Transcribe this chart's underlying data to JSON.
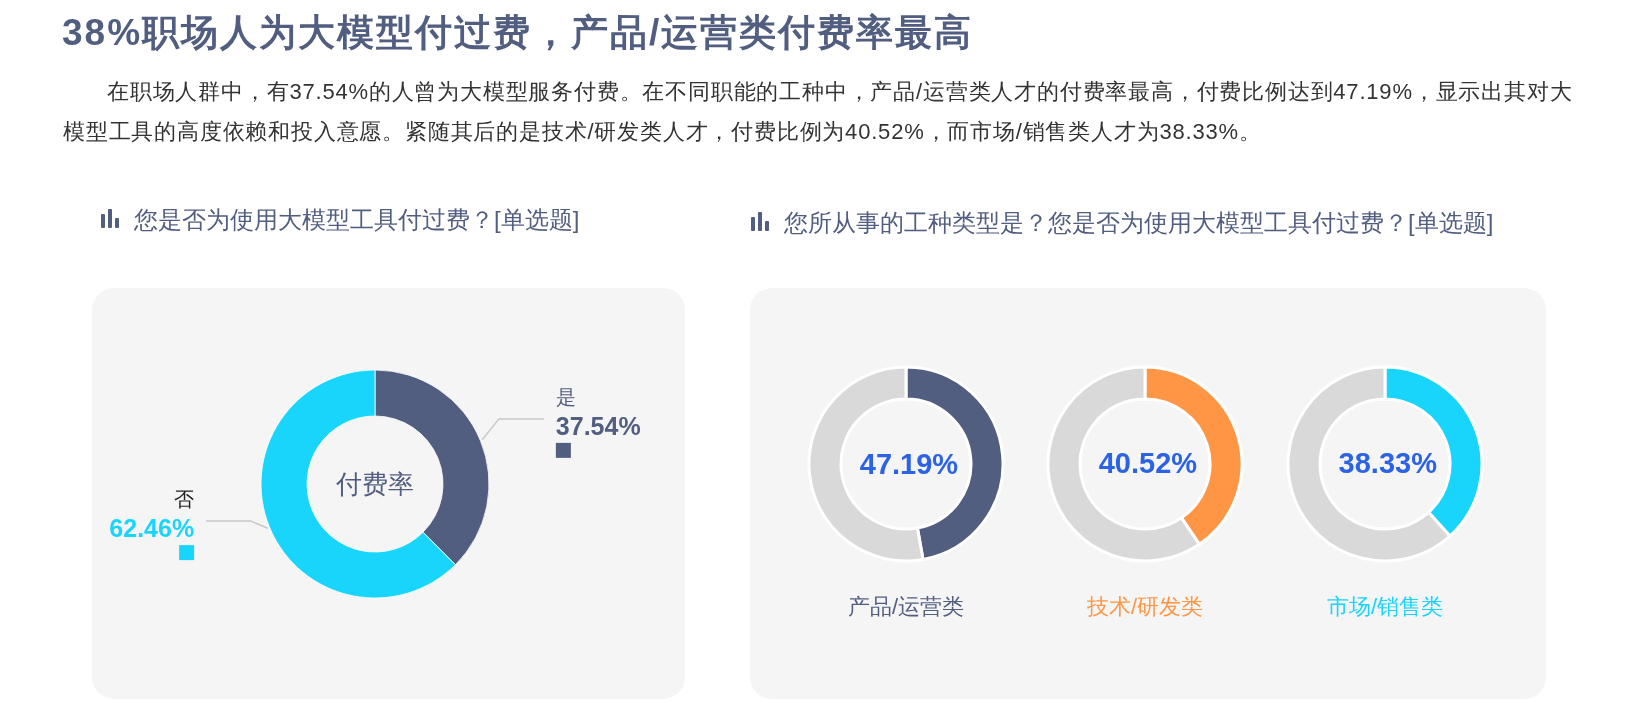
{
  "chart_data": [
    {
      "type": "other",
      "title": "38%职场人为大模型付过费，产品/运营类付费率最高",
      "subtitle": "在职场人群中，有37.54%的人曾为大模型服务付费。在不同职能的工种中，产品/运营类人才的付费率最高，付费比例达到47.19%，显示出其对大模型工具的高度依赖和投入意愿。紧随其后的是技术/研发类人才，付费比例为40.52%，而市场/销售类人才为38.33%。"
    },
    {
      "type": "donut",
      "title": "您是否为使用大模型工具付过费？[单选题]",
      "categories": [
        "是",
        "否"
      ],
      "values": [
        37.54,
        62.46
      ],
      "colors": [
        "#525e80",
        "#19d5fb"
      ],
      "value_labels": [
        "37.54%",
        "62.46%"
      ],
      "annotations": [
        "付费率"
      ]
    },
    {
      "type": "other",
      "title": "您所从事的工种类型是？您是否为使用大模型工具付过费？[单选题]"
    },
    {
      "type": "donut",
      "title": "产品/运营类",
      "categories": [
        null,
        null
      ],
      "values": [
        47.19,
        52.81
      ],
      "colors": [
        "#525e80",
        "#d9d9d9"
      ],
      "value_labels": [
        "47.19%",
        null
      ]
    },
    {
      "type": "donut",
      "title": "技术/研发类",
      "categories": [
        null,
        null
      ],
      "values": [
        40.52,
        59.48
      ],
      "colors": [
        "#ff9646",
        "#d9d9d9"
      ],
      "value_labels": [
        "40.52%",
        null
      ]
    },
    {
      "type": "donut",
      "title": "市场/销售类",
      "categories": [
        null,
        null
      ],
      "values": [
        38.33,
        61.67
      ],
      "colors": [
        "#19d5fb",
        "#d9d9d9"
      ],
      "value_labels": [
        "38.33%",
        null
      ]
    }
  ]
}
